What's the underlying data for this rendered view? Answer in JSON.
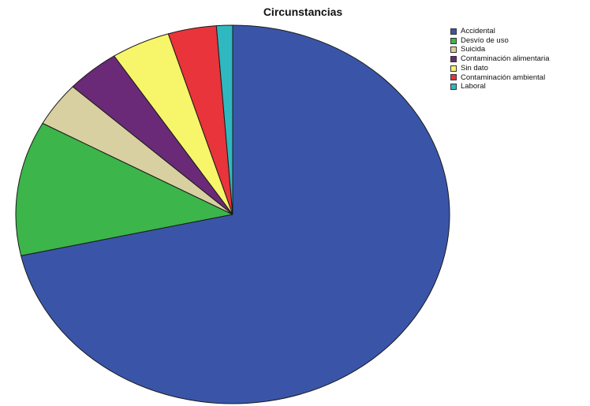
{
  "chart_data": {
    "type": "pie",
    "title": "Circunstancias",
    "legend_position": "top-right",
    "start_angle_deg": 0,
    "direction": "clockwise",
    "slices": [
      {
        "label": "Accidental",
        "value": 71.5,
        "color": "#3a55a8"
      },
      {
        "label": "Desvío de uso",
        "value": 11.5,
        "color": "#3cb54a"
      },
      {
        "label": "Suicida",
        "value": 3.8,
        "color": "#d8d0a0"
      },
      {
        "label": "Contaminación alimentaria",
        "value": 4.0,
        "color": "#6a2a78"
      },
      {
        "label": "Sin dato",
        "value": 4.4,
        "color": "#f7f56a"
      },
      {
        "label": "Contaminación ambiental",
        "value": 3.6,
        "color": "#e8343a"
      },
      {
        "label": "Laboral",
        "value": 1.2,
        "color": "#2fb8bf"
      }
    ]
  }
}
